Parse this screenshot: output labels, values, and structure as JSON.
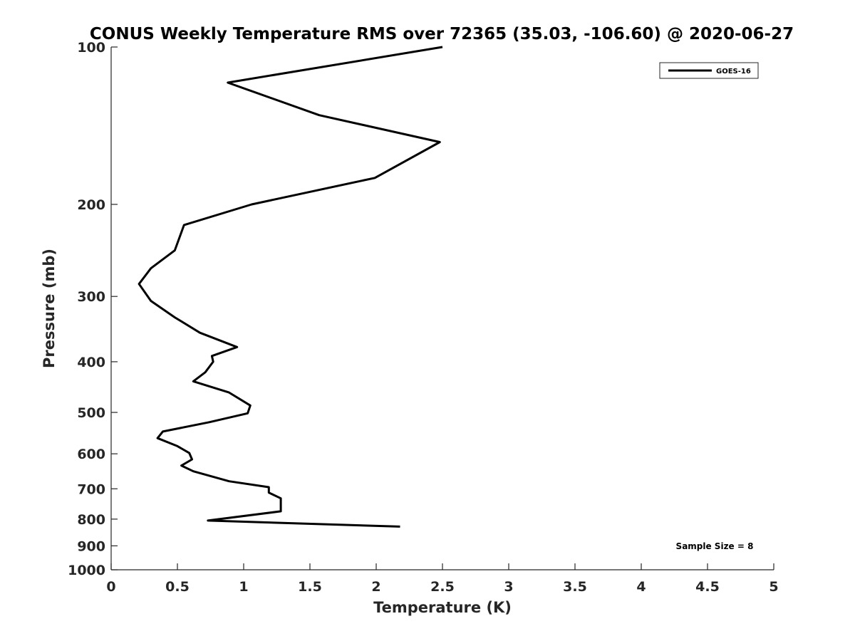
{
  "chart_data": {
    "type": "line",
    "title": "CONUS Weekly Temperature RMS over 72365 (35.03, -106.60) @ 2020-06-27",
    "xlabel": "Temperature (K)",
    "ylabel": "Pressure (mb)",
    "xlim": [
      0,
      5
    ],
    "ylim": [
      100,
      1000
    ],
    "y_scale": "log",
    "y_reversed": true,
    "grid": false,
    "legend_position": "top-right",
    "x_ticks": [
      "0",
      "0.5",
      "1",
      "1.5",
      "2",
      "2.5",
      "3",
      "3.5",
      "4",
      "4.5",
      "5"
    ],
    "x_tick_values": [
      0,
      0.5,
      1,
      1.5,
      2,
      2.5,
      3,
      3.5,
      4,
      4.5,
      5
    ],
    "y_ticks": [
      "100",
      "200",
      "300",
      "400",
      "500",
      "600",
      "700",
      "800",
      "900",
      "1000"
    ],
    "y_tick_values": [
      100,
      200,
      300,
      400,
      500,
      600,
      700,
      800,
      900,
      1000
    ],
    "series": [
      {
        "name": "GOES-16",
        "color": "#000000",
        "x": [
          2.5,
          0.88,
          1.57,
          2.48,
          1.99,
          1.06,
          0.55,
          0.48,
          0.3,
          0.21,
          0.3,
          0.48,
          0.67,
          0.95,
          0.76,
          0.77,
          0.71,
          0.62,
          0.89,
          1.05,
          1.03,
          0.74,
          0.39,
          0.35,
          0.5,
          0.59,
          0.61,
          0.53,
          0.62,
          0.89,
          1.19,
          1.19,
          1.28,
          1.28,
          0.73,
          2.18
        ],
        "y": [
          100,
          117,
          135,
          152,
          178,
          200,
          219,
          245,
          265,
          284,
          306,
          329,
          352,
          375,
          390,
          400,
          419,
          436,
          458,
          485,
          502,
          522,
          544,
          560,
          580,
          598,
          615,
          632,
          648,
          677,
          695,
          712,
          730,
          773,
          805,
          827
        ]
      }
    ],
    "annotations": [
      "Sample Size = 8"
    ]
  }
}
